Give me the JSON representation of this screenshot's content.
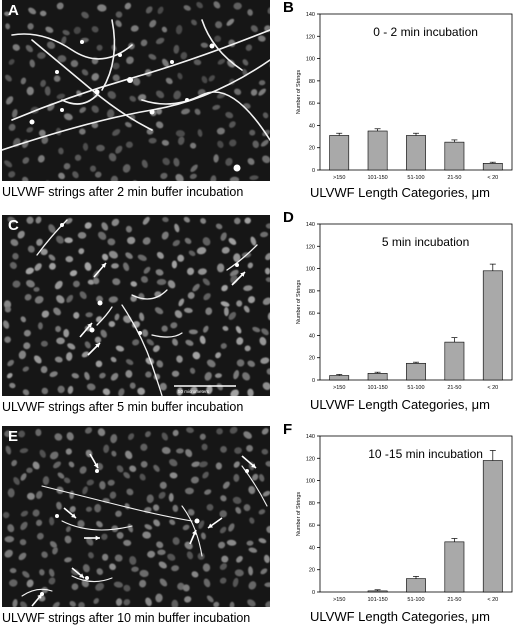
{
  "panels": [
    {
      "letter": "A",
      "caption": "ULVWF strings after 2 min buffer incubation"
    },
    {
      "letter": "C",
      "caption": "ULVWF strings after 5 min buffer incubation",
      "scale_bar": "50 micrometers"
    },
    {
      "letter": "E",
      "caption": "ULVWF strings after 10 min buffer incubation"
    }
  ],
  "chart_data": [
    {
      "letter": "B",
      "type": "bar",
      "title": "0 - 2 min incubation",
      "categories": [
        ">150",
        "101-150",
        "51-100",
        "21-50",
        "< 20"
      ],
      "values": [
        31,
        35,
        31,
        25,
        6
      ],
      "errors": [
        2,
        2,
        2,
        2,
        1
      ],
      "ylabel": "Number of Strings",
      "xlabel": "ULVWF Length Categories, μm",
      "ylim": [
        0,
        140
      ],
      "yticks": [
        0,
        20,
        40,
        60,
        80,
        100,
        120,
        140
      ],
      "bar_color": "#a9a9a9"
    },
    {
      "letter": "D",
      "type": "bar",
      "title": "5 min incubation",
      "categories": [
        ">150",
        "101-150",
        "51-100",
        "21-50",
        "< 20"
      ],
      "values": [
        4,
        6,
        15,
        34,
        98
      ],
      "errors": [
        1,
        1,
        1,
        4,
        6
      ],
      "ylabel": "Number of Strings",
      "xlabel": "ULVWF Length Categories, μm",
      "ylim": [
        0,
        140
      ],
      "yticks": [
        0,
        20,
        40,
        60,
        80,
        100,
        120,
        140
      ],
      "bar_color": "#a9a9a9"
    },
    {
      "letter": "F",
      "type": "bar",
      "title": "10 -15 min incubation",
      "categories": [
        ">150",
        "101-150",
        "51-100",
        "21-50",
        "< 20"
      ],
      "values": [
        0,
        1,
        12,
        45,
        118
      ],
      "errors": [
        0,
        1,
        2,
        3,
        9
      ],
      "ylabel": "Number of Strings",
      "xlabel": "ULVWF Length Categories, μm",
      "ylim": [
        0,
        140
      ],
      "yticks": [
        0,
        20,
        40,
        60,
        80,
        100,
        120,
        140
      ],
      "bar_color": "#a9a9a9"
    }
  ]
}
